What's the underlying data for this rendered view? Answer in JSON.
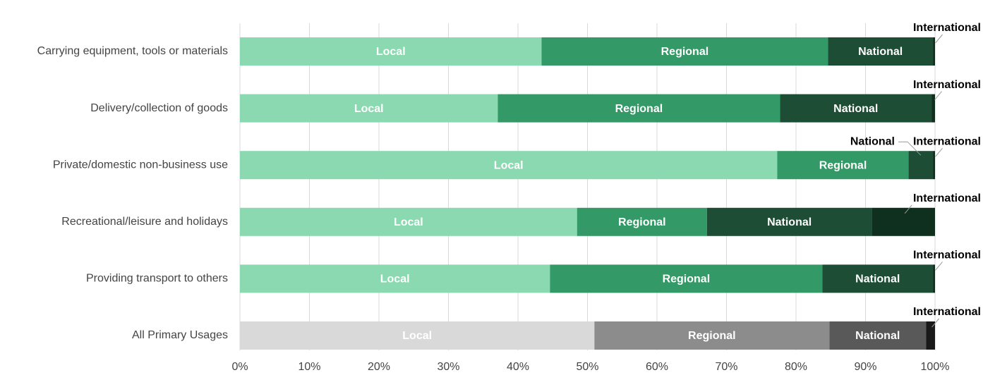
{
  "chart_data": {
    "type": "stacked-bar-horizontal",
    "categories": [
      "Carrying equipment, tools or materials",
      "Delivery/collection of goods",
      "Private/domestic non-business use",
      "Recreational/leisure and holidays",
      "Providing transport to others",
      "All Primary Usages"
    ],
    "series": [
      {
        "name": "Local",
        "color": "#8ad9b0",
        "colors": [
          "#8ad9b0",
          "#8ad9b0",
          "#8ad9b0",
          "#8ad9b0",
          "#8ad9b0",
          "#d9d9d9"
        ],
        "values": [
          43.4,
          37.1,
          77.3,
          48.5,
          44.6,
          51.0
        ]
      },
      {
        "name": "Regional",
        "color": "#339966",
        "colors": [
          "#339966",
          "#339966",
          "#339966",
          "#339966",
          "#339966",
          "#8c8c8c"
        ],
        "values": [
          41.2,
          40.6,
          18.9,
          18.7,
          39.2,
          33.8
        ]
      },
      {
        "name": "National",
        "color": "#1e4d35",
        "colors": [
          "#1e4d35",
          "#1e4d35",
          "#1e4d35",
          "#1e4d35",
          "#1e4d35",
          "#595959"
        ],
        "values": [
          15.1,
          21.8,
          3.5,
          23.7,
          15.9,
          13.9
        ]
      },
      {
        "name": "International",
        "color": "#10301f",
        "colors": [
          "#10301f",
          "#10301f",
          "#10301f",
          "#10301f",
          "#10301f",
          "#1a1a1a"
        ],
        "values": [
          0.3,
          0.5,
          0.3,
          9.1,
          0.3,
          1.3
        ]
      }
    ],
    "xlim": [
      0,
      100
    ],
    "xticks": [
      {
        "value": 0,
        "label": "0%"
      },
      {
        "value": 10,
        "label": "10%"
      },
      {
        "value": 20,
        "label": "20%"
      },
      {
        "value": 30,
        "label": "30%"
      },
      {
        "value": 40,
        "label": "40%"
      },
      {
        "value": 50,
        "label": "50%"
      },
      {
        "value": 60,
        "label": "60%"
      },
      {
        "value": 70,
        "label": "70%"
      },
      {
        "value": 80,
        "label": "80%"
      },
      {
        "value": 90,
        "label": "90%"
      },
      {
        "value": 100,
        "label": "100%"
      }
    ],
    "grid": true
  }
}
